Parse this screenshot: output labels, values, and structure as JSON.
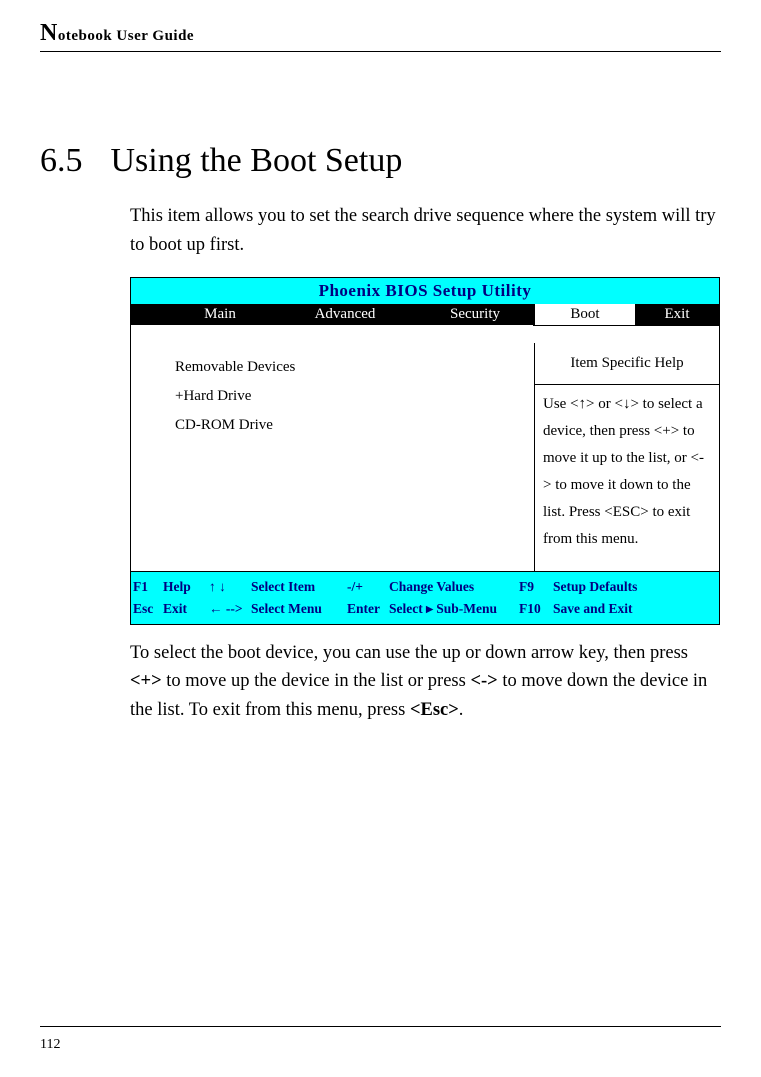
{
  "header": {
    "title_prefix_big": "N",
    "title_rest": "otebook User Guide"
  },
  "section": {
    "number": "6.5",
    "title": "Using the Boot Setup"
  },
  "intro": "This item allows you to set the search drive sequence where the system will try to boot up first.",
  "bios": {
    "title": "Phoenix BIOS Setup Utility",
    "title_bg": "#00ffff",
    "title_fg": "#000080",
    "tabs": {
      "main": "Main",
      "advanced": "Advanced",
      "security": "Security",
      "boot": "Boot",
      "exit": "Exit",
      "active": "boot"
    },
    "boot_list": [
      "Removable Devices",
      "+Hard Drive",
      "CD-ROM Drive"
    ],
    "help_title": "Item Specific Help",
    "help_text": "Use <↑> or <↓> to select a device, then press <+> to move it up to the list, or <-> to move it down to the list. Press <ESC> to exit from this menu.",
    "footer": {
      "c1a": "F1",
      "c1b": "Esc",
      "c2a": "Help",
      "c2b": "Exit",
      "c3a": "↑ ↓",
      "c3b": "← -->",
      "c4a": "Select Item",
      "c4b": "Select Menu",
      "c5a": "-/+",
      "c5b": "Enter",
      "c6a": "Change Values",
      "c6b": "Select  ▸ Sub-Menu",
      "c7a": "F9",
      "c7b": "F10",
      "c8a": "Setup Defaults",
      "c8b": "Save and Exit",
      "bg": "#00ffff",
      "fg": "#000080"
    }
  },
  "closing_parts": {
    "p1": "To select the boot device, you can use the up or down arrow key, then press ",
    "b1": "<+>",
    "p2": " to move up the device in the list or press ",
    "b2": "<->",
    "p3": " to move down the device in the list. To exit from this menu, press ",
    "b3": "<Esc>",
    "p4": "."
  },
  "page_number": "112"
}
